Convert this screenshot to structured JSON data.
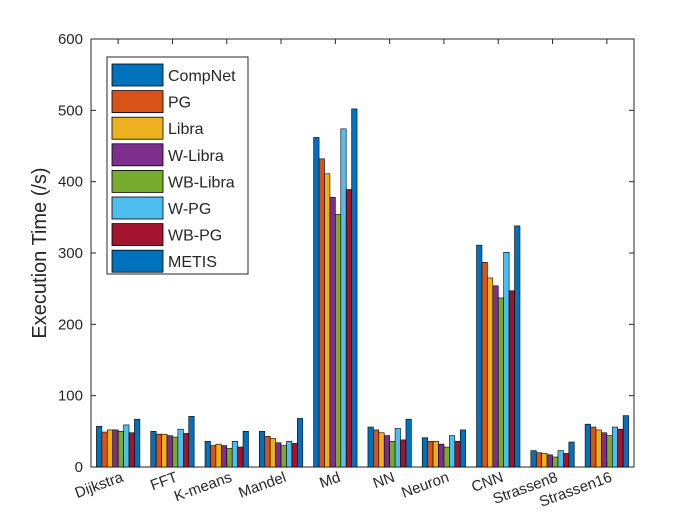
{
  "chart_data": {
    "type": "bar",
    "title": "",
    "xlabel": "",
    "ylabel": "Execution Time (/s)",
    "ylim": [
      0,
      600
    ],
    "yticks": [
      0,
      100,
      200,
      300,
      400,
      500,
      600
    ],
    "grid": false,
    "legend_position": "top-left",
    "categories": [
      "Dijkstra",
      "FFT",
      "K-means",
      "Mandel",
      "Md",
      "NN",
      "Neuron",
      "CNN",
      "Strassen8",
      "Strassen16"
    ],
    "series": [
      {
        "name": "CompNet",
        "color": "#0072BD",
        "values": [
          57,
          50,
          36,
          50,
          462,
          56,
          41,
          311,
          23,
          60
        ]
      },
      {
        "name": "PG",
        "color": "#D95319",
        "values": [
          49,
          46,
          30,
          43,
          432,
          52,
          36,
          287,
          20,
          56
        ]
      },
      {
        "name": "Libra",
        "color": "#EDB120",
        "values": [
          52,
          46,
          32,
          40,
          411,
          48,
          36,
          265,
          19,
          52
        ]
      },
      {
        "name": "W-Libra",
        "color": "#7E2F8E",
        "values": [
          52,
          44,
          30,
          34,
          378,
          44,
          32,
          254,
          17,
          48
        ]
      },
      {
        "name": "WB-Libra",
        "color": "#77AC30",
        "values": [
          50,
          42,
          26,
          30,
          354,
          36,
          28,
          237,
          14,
          44
        ]
      },
      {
        "name": "W-PG",
        "color": "#4DBEEE",
        "values": [
          59,
          53,
          36,
          36,
          474,
          54,
          44,
          301,
          23,
          56
        ]
      },
      {
        "name": "WB-PG",
        "color": "#A2142F",
        "values": [
          48,
          47,
          28,
          33,
          389,
          38,
          36,
          247,
          19,
          53
        ]
      },
      {
        "name": "METIS",
        "color": "#0072BD",
        "values": [
          67,
          71,
          50,
          68,
          502,
          67,
          52,
          338,
          35,
          72
        ]
      }
    ]
  }
}
